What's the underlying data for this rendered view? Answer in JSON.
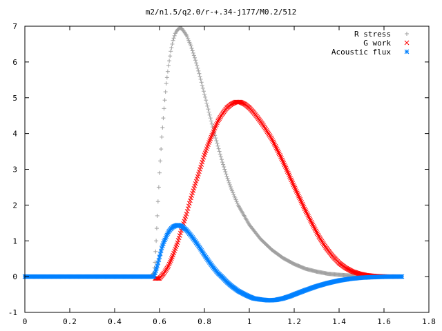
{
  "chart_data": {
    "type": "scatter",
    "title": "m2/n1.5/q2.0/r-+.34-j177/M0.2/512",
    "xlabel": "",
    "ylabel": "",
    "xlim": [
      0,
      1.8
    ],
    "ylim": [
      -1,
      7
    ],
    "xticks": [
      "0",
      "0.2",
      "0.4",
      "0.6",
      "0.8",
      "1",
      "1.2",
      "1.4",
      "1.6",
      "1.8"
    ],
    "yticks": [
      "-1",
      "0",
      "1",
      "2",
      "3",
      "4",
      "5",
      "6",
      "7"
    ],
    "grid": false,
    "legend_position": "top-right",
    "series": [
      {
        "name": "R stress",
        "marker": "plus",
        "color": "#a0a0a0",
        "x": [
          0.0,
          0.1,
          0.2,
          0.3,
          0.4,
          0.5,
          0.56,
          0.575,
          0.58,
          0.585,
          0.59,
          0.6,
          0.61,
          0.62,
          0.63,
          0.64,
          0.65,
          0.66,
          0.67,
          0.68,
          0.69,
          0.7,
          0.72,
          0.74,
          0.76,
          0.78,
          0.8,
          0.82,
          0.84,
          0.86,
          0.88,
          0.9,
          0.92,
          0.95,
          1.0,
          1.05,
          1.1,
          1.15,
          1.2,
          1.25,
          1.3,
          1.35,
          1.4,
          1.45,
          1.5,
          1.55,
          1.6,
          1.65,
          1.68
        ],
        "y": [
          0,
          0,
          0,
          0,
          0,
          0,
          0,
          0.1,
          0.4,
          1.0,
          1.7,
          2.9,
          3.9,
          4.7,
          5.4,
          5.9,
          6.3,
          6.6,
          6.8,
          6.9,
          6.95,
          6.93,
          6.75,
          6.45,
          6.05,
          5.6,
          5.1,
          4.6,
          4.1,
          3.65,
          3.2,
          2.8,
          2.45,
          2.0,
          1.45,
          1.05,
          0.75,
          0.52,
          0.35,
          0.22,
          0.14,
          0.08,
          0.05,
          0.03,
          0.02,
          0.01,
          0.005,
          0.0,
          0.0
        ]
      },
      {
        "name": "G work",
        "marker": "cross",
        "color": "#ff0000",
        "x": [
          0.58,
          0.6,
          0.62,
          0.64,
          0.66,
          0.68,
          0.7,
          0.72,
          0.74,
          0.76,
          0.78,
          0.8,
          0.82,
          0.84,
          0.86,
          0.88,
          0.9,
          0.92,
          0.94,
          0.96,
          0.98,
          1.0,
          1.02,
          1.04,
          1.06,
          1.08,
          1.1,
          1.12,
          1.14,
          1.16,
          1.18,
          1.2,
          1.22,
          1.25,
          1.28,
          1.31,
          1.34,
          1.37,
          1.4,
          1.43,
          1.46,
          1.49,
          1.52,
          1.55,
          1.58,
          1.62,
          1.66
        ],
        "y": [
          -0.05,
          -0.05,
          0.1,
          0.3,
          0.6,
          0.95,
          1.35,
          1.75,
          2.2,
          2.6,
          3.0,
          3.4,
          3.75,
          4.05,
          4.35,
          4.55,
          4.72,
          4.82,
          4.88,
          4.88,
          4.82,
          4.72,
          4.58,
          4.42,
          4.25,
          4.05,
          3.85,
          3.6,
          3.35,
          3.08,
          2.8,
          2.52,
          2.25,
          1.85,
          1.48,
          1.12,
          0.82,
          0.58,
          0.38,
          0.24,
          0.14,
          0.08,
          0.04,
          0.02,
          0.01,
          0.0,
          0.0
        ]
      },
      {
        "name": "Acoustic flux",
        "marker": "star",
        "color": "#0080ff",
        "x": [
          0.0,
          0.1,
          0.2,
          0.3,
          0.4,
          0.5,
          0.55,
          0.575,
          0.58,
          0.59,
          0.6,
          0.61,
          0.62,
          0.63,
          0.64,
          0.65,
          0.66,
          0.67,
          0.68,
          0.69,
          0.7,
          0.72,
          0.74,
          0.76,
          0.78,
          0.8,
          0.82,
          0.84,
          0.86,
          0.88,
          0.9,
          0.92,
          0.95,
          0.98,
          1.0,
          1.02,
          1.05,
          1.08,
          1.1,
          1.12,
          1.15,
          1.18,
          1.2,
          1.25,
          1.3,
          1.35,
          1.4,
          1.45,
          1.5,
          1.55,
          1.6,
          1.65,
          1.68
        ],
        "y": [
          0,
          0,
          0,
          0,
          0,
          0,
          0,
          0,
          0.1,
          0.3,
          0.55,
          0.8,
          0.98,
          1.12,
          1.25,
          1.33,
          1.39,
          1.42,
          1.44,
          1.43,
          1.4,
          1.3,
          1.15,
          0.98,
          0.8,
          0.6,
          0.42,
          0.25,
          0.1,
          -0.02,
          -0.15,
          -0.26,
          -0.4,
          -0.5,
          -0.56,
          -0.61,
          -0.64,
          -0.66,
          -0.66,
          -0.65,
          -0.61,
          -0.55,
          -0.5,
          -0.38,
          -0.27,
          -0.18,
          -0.11,
          -0.06,
          -0.03,
          -0.015,
          -0.005,
          0.0,
          0.0
        ]
      }
    ]
  }
}
